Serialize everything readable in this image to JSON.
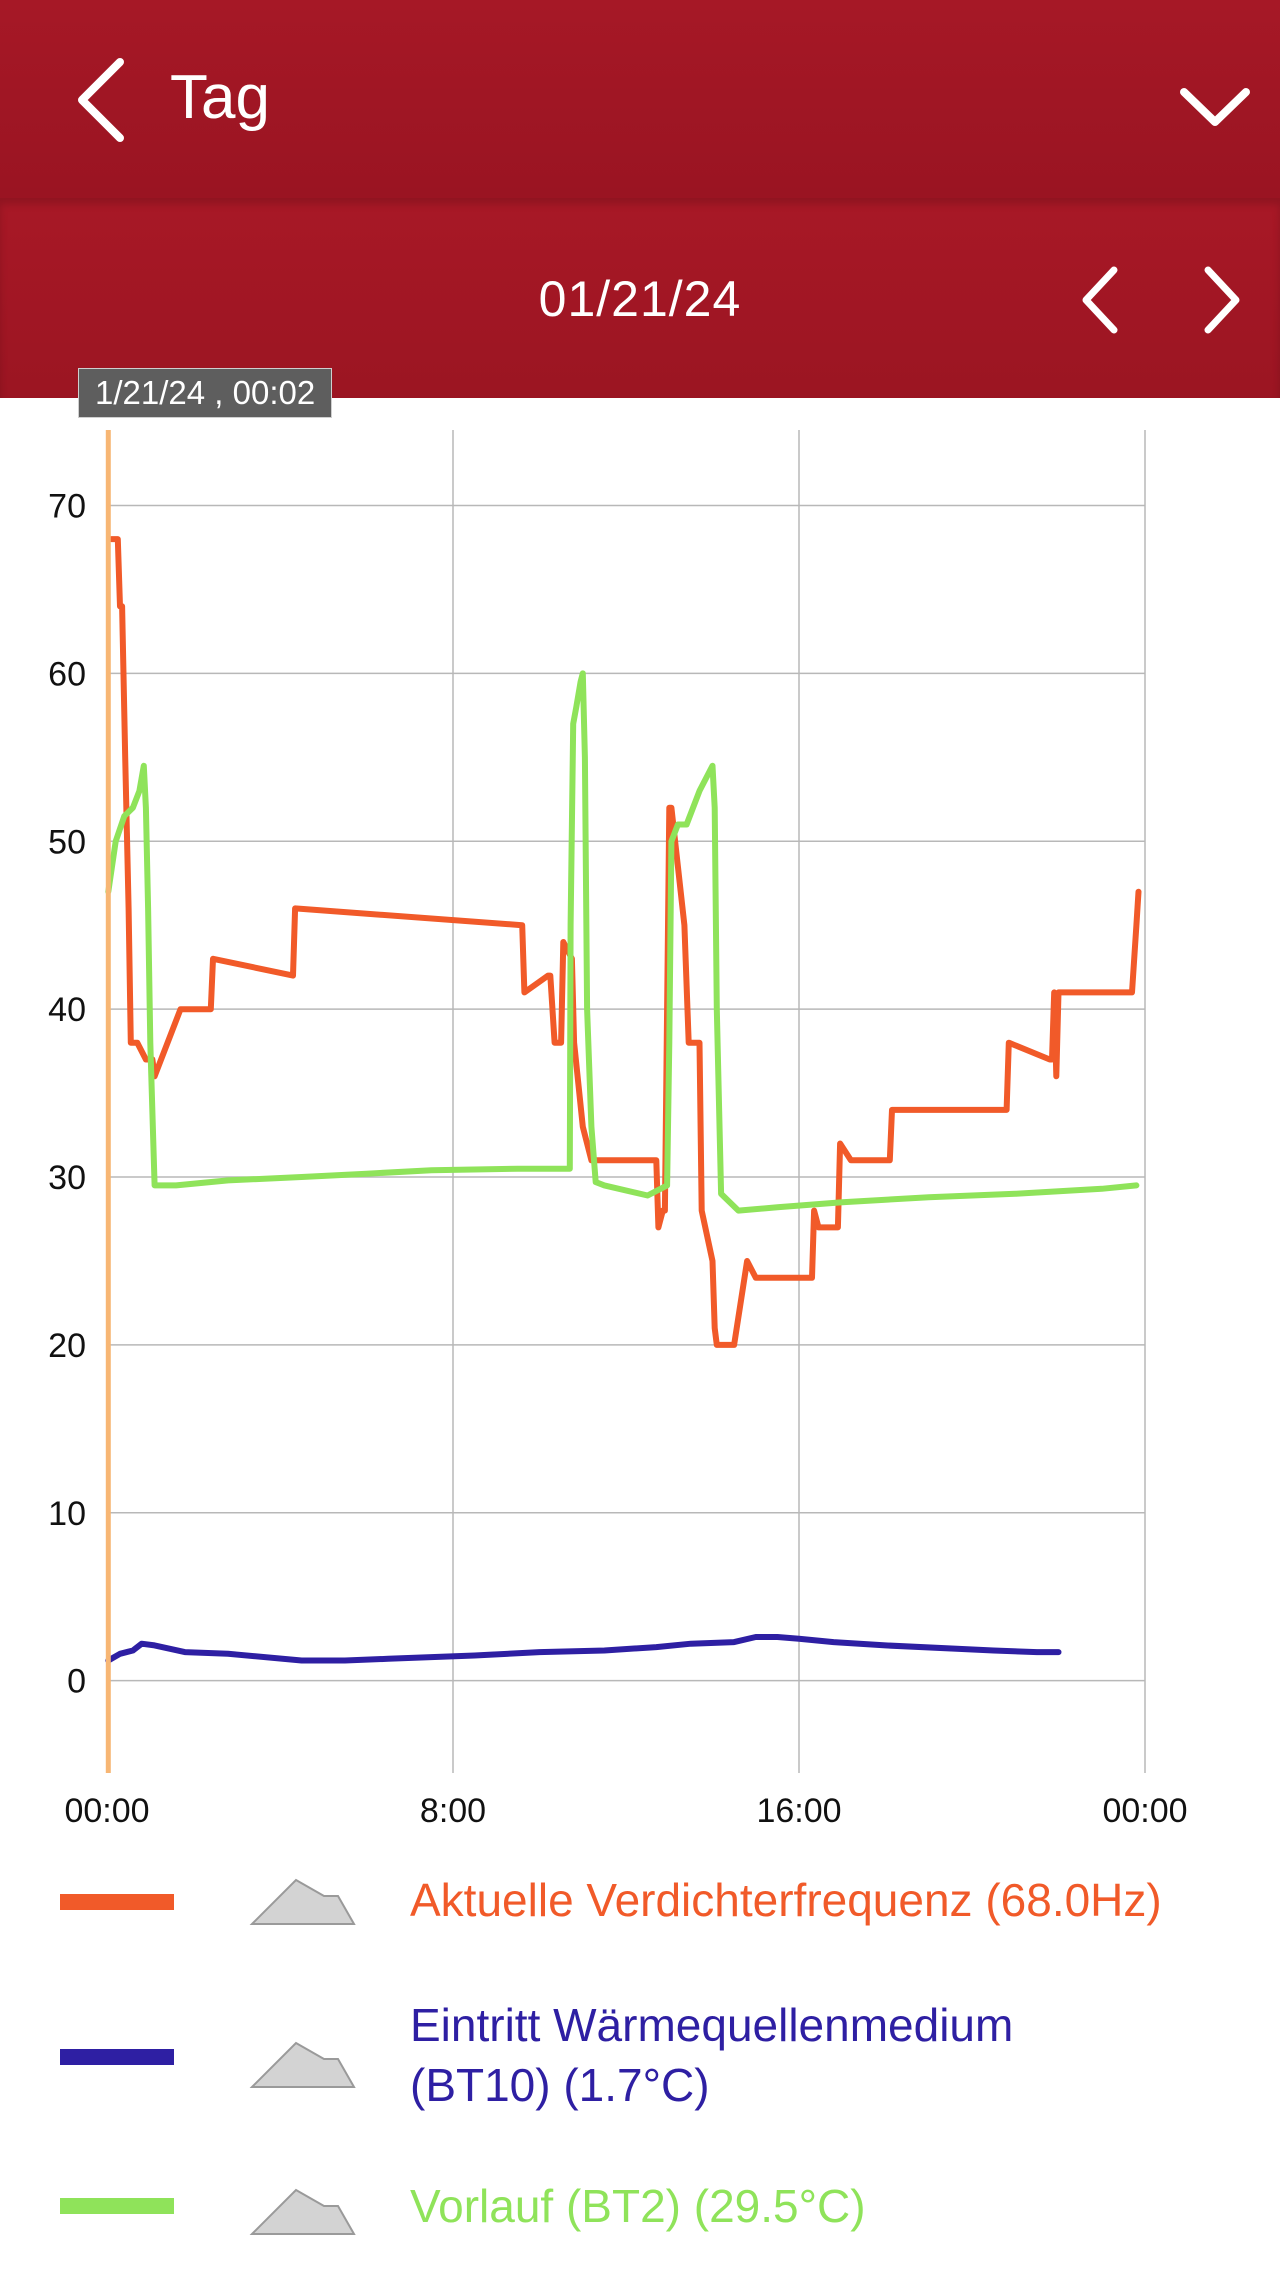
{
  "header": {
    "title": "Tag",
    "date": "01/21/24"
  },
  "tooltip": "1/21/24 , 00:02",
  "colors": {
    "header_bg": "#a51826",
    "series_orange": "#f15a29",
    "series_blue": "#2e1fa3",
    "series_green": "#8fe35a",
    "cursor_line": "#f7b674"
  },
  "chart_data": {
    "type": "line",
    "xlabel": "",
    "ylabel": "",
    "x_unit": "hours",
    "xlim": [
      0,
      24
    ],
    "ylim": [
      -5.5,
      74.5
    ],
    "x_ticks": [
      {
        "value": 0,
        "label": "00:00"
      },
      {
        "value": 8,
        "label": "8:00"
      },
      {
        "value": 16,
        "label": "16:00"
      },
      {
        "value": 24,
        "label": "00:00"
      }
    ],
    "y_ticks": [
      0,
      10,
      20,
      30,
      40,
      50,
      60,
      70
    ],
    "grid": true,
    "cursor_x": 0.03,
    "series": [
      {
        "name": "Aktuelle Verdichterfrequenz (68.0Hz)",
        "color": "#f15a29",
        "x": [
          0.1,
          0.25,
          0.3,
          0.35,
          0.42,
          0.5,
          0.55,
          0.62,
          0.7,
          0.9,
          1.05,
          1.1,
          1.7,
          1.75,
          2.4,
          2.45,
          4.3,
          4.35,
          9.6,
          9.65,
          10.2,
          10.25,
          10.35,
          10.5,
          10.55,
          10.75,
          10.8,
          11.0,
          11.2,
          12.7,
          12.75,
          12.85,
          12.9,
          13.0,
          13.05,
          13.35,
          13.45,
          13.5,
          13.7,
          13.75,
          14.0,
          14.05,
          14.1,
          14.3,
          14.5,
          14.8,
          15.0,
          15.2,
          15.25,
          16.3,
          16.35,
          16.45,
          16.5,
          16.9,
          16.95,
          17.2,
          17.25,
          18.1,
          18.15,
          20.8,
          20.85,
          21.8,
          21.85,
          21.9,
          21.95,
          22.0,
          23.7,
          23.8,
          23.85
        ],
        "values": [
          68,
          68,
          64,
          64,
          55,
          46,
          38,
          38,
          38,
          37,
          37,
          36,
          40,
          40,
          40,
          43,
          42,
          46,
          45,
          41,
          42,
          42,
          38,
          38,
          44,
          43,
          38,
          33,
          31,
          31,
          27,
          28,
          28,
          52,
          52,
          45,
          38,
          38,
          38,
          28,
          25,
          21,
          20,
          20,
          20,
          25,
          24,
          24,
          24,
          24,
          28,
          27,
          27,
          27,
          32,
          31,
          31,
          31,
          34,
          34,
          38,
          37,
          37,
          41,
          36,
          41,
          41,
          45,
          47
        ]
      },
      {
        "name": "Eintritt Wärmequellenmedium (BT10) (1.7°C)",
        "color": "#2e1fa3",
        "x": [
          0.03,
          0.3,
          0.6,
          0.8,
          1.1,
          1.8,
          2.8,
          4.5,
          5.5,
          6.5,
          8.5,
          10.0,
          11.5,
          12.7,
          13.5,
          14.5,
          15.0,
          15.5,
          16.0,
          16.8,
          18.0,
          20.5,
          21.5,
          22.0
        ],
        "values": [
          1.2,
          1.6,
          1.8,
          2.2,
          2.1,
          1.7,
          1.6,
          1.2,
          1.2,
          1.3,
          1.5,
          1.7,
          1.8,
          2.0,
          2.2,
          2.3,
          2.6,
          2.6,
          2.5,
          2.3,
          2.1,
          1.8,
          1.7,
          1.7
        ]
      },
      {
        "name": "Vorlauf (BT2) (29.5°C)",
        "color": "#8fe35a",
        "x": [
          0.03,
          0.2,
          0.4,
          0.6,
          0.75,
          0.85,
          0.9,
          0.95,
          1.0,
          1.1,
          1.6,
          2.8,
          4.5,
          6.0,
          7.5,
          9.5,
          10.7,
          10.72,
          10.78,
          10.85,
          10.95,
          11.0,
          11.05,
          11.1,
          11.2,
          11.3,
          11.5,
          12.5,
          12.95,
          13.0,
          13.05,
          13.2,
          13.4,
          13.7,
          14.0,
          14.05,
          14.1,
          14.2,
          14.6,
          15.5,
          17.0,
          19.0,
          21.0,
          23.0,
          23.8
        ],
        "values": [
          47,
          50,
          51.5,
          52,
          53,
          54.5,
          52,
          46,
          38,
          29.5,
          29.5,
          29.8,
          30,
          30.2,
          30.4,
          30.5,
          30.5,
          45,
          57,
          58,
          59.5,
          60,
          55,
          40,
          33,
          29.7,
          29.5,
          28.9,
          29.5,
          38,
          50,
          51,
          51,
          53,
          54.5,
          52,
          40,
          29,
          28,
          28.2,
          28.5,
          28.8,
          29,
          29.3,
          29.5
        ]
      }
    ]
  }
}
